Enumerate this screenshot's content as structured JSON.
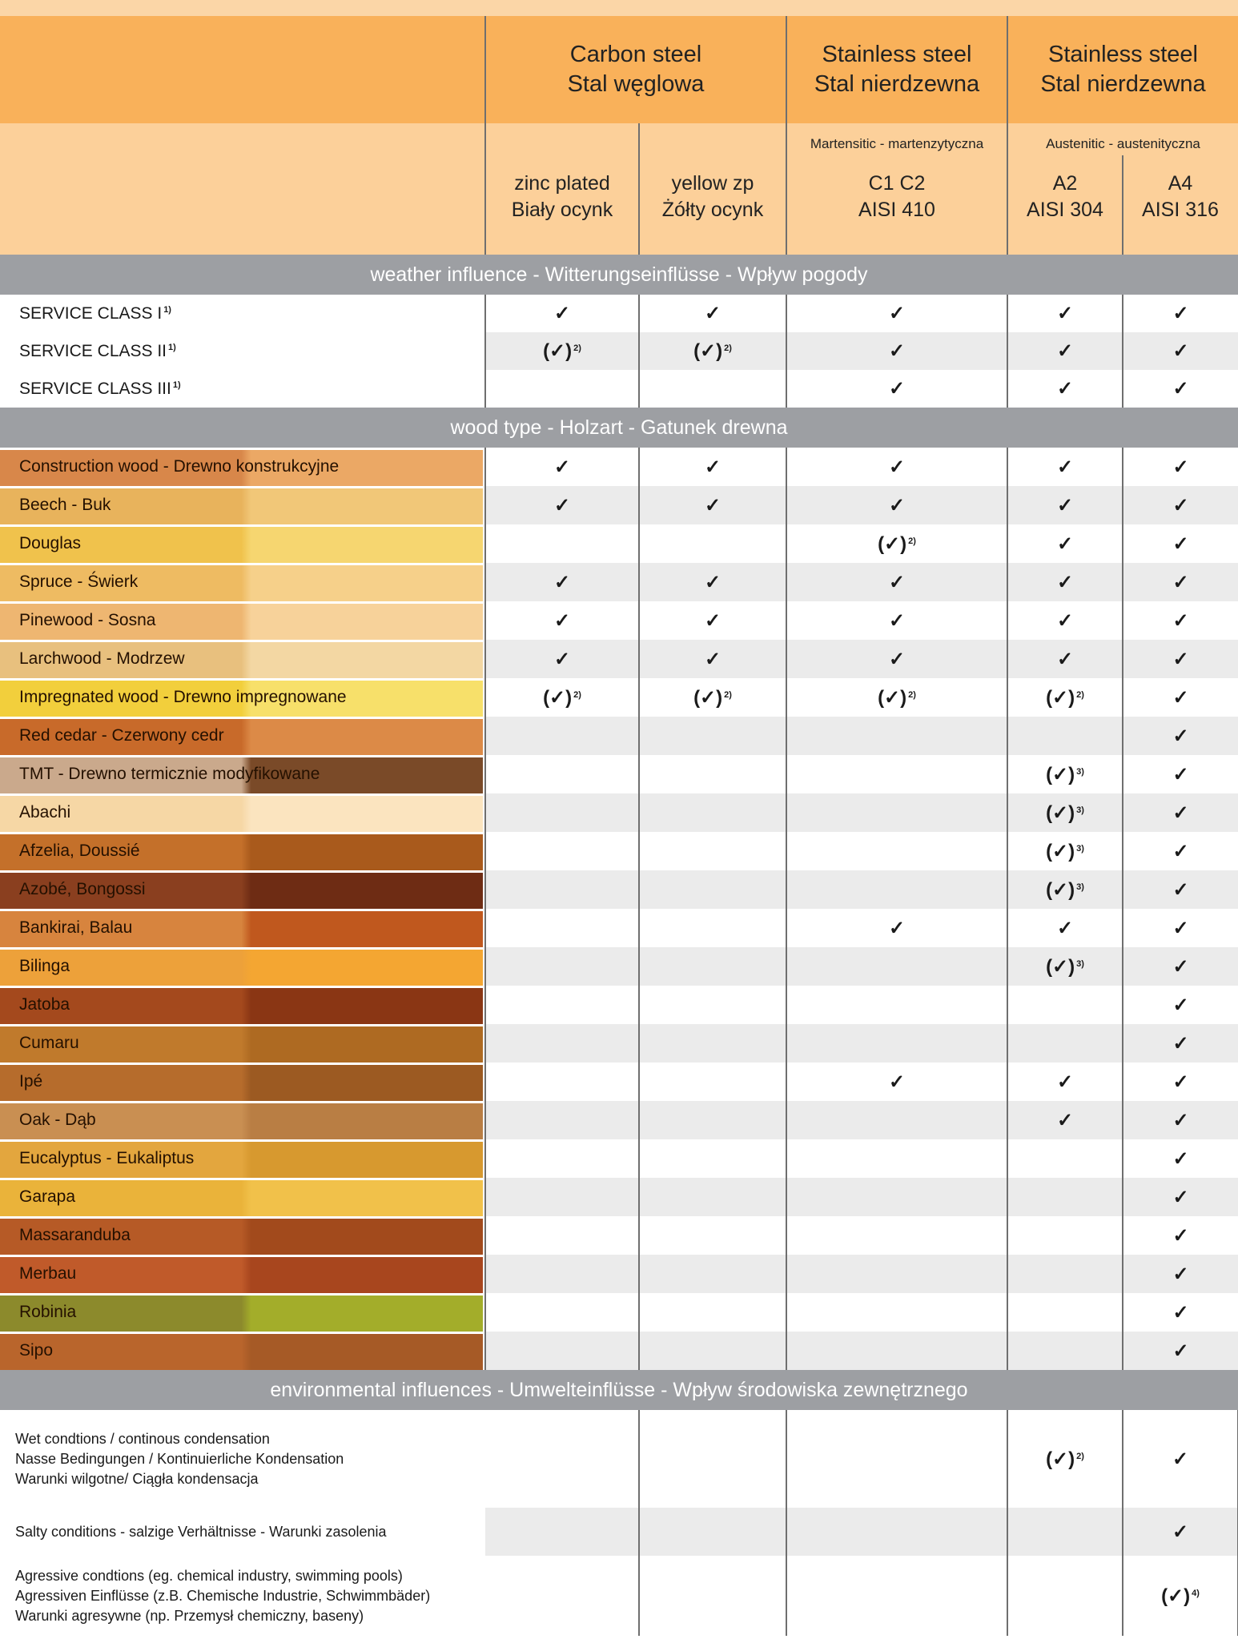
{
  "header": {
    "carbon": [
      "Carbon steel",
      "Stal węglowa"
    ],
    "stainless1": [
      "Stainless steel",
      "Stal nierdzewna"
    ],
    "stainless2": [
      "Stainless steel",
      "Stal nierdzewna"
    ],
    "martensitic": "Martensitic - martenzytyczna",
    "austenitic": "Austenitic - austenityczna",
    "cols": [
      [
        "zinc plated",
        "Biały ocynk"
      ],
      [
        "yellow zp",
        "Żółty ocynk"
      ],
      [
        "C1 C2",
        "AISI 410"
      ],
      [
        "A2",
        "AISI 304"
      ],
      [
        "A4",
        "AISI 316"
      ]
    ]
  },
  "marks": {
    "check": "✓",
    "limited": "(✓)"
  },
  "sections": [
    {
      "title": "weather influence - Witterungseinflüsse - Wpływ pogody",
      "rows": [
        {
          "label": "SERVICE CLASS I",
          "note": "1)",
          "cells": [
            {
              "v": "✓"
            },
            {
              "v": "✓"
            },
            {
              "v": "✓"
            },
            {
              "v": "✓"
            },
            {
              "v": "✓"
            }
          ]
        },
        {
          "label": "SERVICE CLASS II",
          "note": "1)",
          "cells": [
            {
              "v": "(✓)",
              "n": "2)"
            },
            {
              "v": "(✓)",
              "n": "2)"
            },
            {
              "v": "✓"
            },
            {
              "v": "✓"
            },
            {
              "v": "✓"
            }
          ]
        },
        {
          "label": "SERVICE CLASS III",
          "note": "1)",
          "cells": [
            {
              "v": ""
            },
            {
              "v": ""
            },
            {
              "v": "✓"
            },
            {
              "v": "✓"
            },
            {
              "v": "✓"
            }
          ]
        }
      ]
    },
    {
      "title": "wood type - Holzart - Gatunek drewna",
      "rows": [
        {
          "label": "Construction wood - Drewno konstrukcyjne",
          "wood": [
            "#d8874a",
            "#eba865"
          ],
          "cells": [
            {
              "v": "✓"
            },
            {
              "v": "✓"
            },
            {
              "v": "✓"
            },
            {
              "v": "✓"
            },
            {
              "v": "✓"
            }
          ]
        },
        {
          "label": "Beech - Buk",
          "wood": [
            "#e8b35c",
            "#f1c778"
          ],
          "cells": [
            {
              "v": "✓"
            },
            {
              "v": "✓"
            },
            {
              "v": "✓"
            },
            {
              "v": "✓"
            },
            {
              "v": "✓"
            }
          ]
        },
        {
          "label": "Douglas",
          "wood": [
            "#f0c24c",
            "#f6d670"
          ],
          "cells": [
            {
              "v": ""
            },
            {
              "v": ""
            },
            {
              "v": "(✓)",
              "n": "2)"
            },
            {
              "v": "✓"
            },
            {
              "v": "✓"
            }
          ]
        },
        {
          "label": "Spruce - Świerk",
          "wood": [
            "#eebb62",
            "#f6d08a"
          ],
          "cells": [
            {
              "v": "✓"
            },
            {
              "v": "✓"
            },
            {
              "v": "✓"
            },
            {
              "v": "✓"
            },
            {
              "v": "✓"
            }
          ]
        },
        {
          "label": "Pinewood - Sosna",
          "wood": [
            "#eeb671",
            "#f7d29a"
          ],
          "cells": [
            {
              "v": "✓"
            },
            {
              "v": "✓"
            },
            {
              "v": "✓"
            },
            {
              "v": "✓"
            },
            {
              "v": "✓"
            }
          ]
        },
        {
          "label": "Larchwood - Modrzew",
          "wood": [
            "#e8c07e",
            "#f3d7a3"
          ],
          "cells": [
            {
              "v": "✓"
            },
            {
              "v": "✓"
            },
            {
              "v": "✓"
            },
            {
              "v": "✓"
            },
            {
              "v": "✓"
            }
          ]
        },
        {
          "label": "Impregnated wood - Drewno impregnowane",
          "wood": [
            "#f2cf3c",
            "#f7e06a"
          ],
          "cells": [
            {
              "v": "(✓)",
              "n": "2)"
            },
            {
              "v": "(✓)",
              "n": "2)"
            },
            {
              "v": "(✓)",
              "n": "2)"
            },
            {
              "v": "(✓)",
              "n": "2)"
            },
            {
              "v": "✓"
            }
          ]
        },
        {
          "label": "Red cedar - Czerwony cedr",
          "wood": [
            "#c86a2a",
            "#dc8a47"
          ],
          "cells": [
            {
              "v": ""
            },
            {
              "v": ""
            },
            {
              "v": ""
            },
            {
              "v": ""
            },
            {
              "v": "✓"
            }
          ]
        },
        {
          "label": "TMT - Drewno termicznie modyfikowane",
          "wood": [
            "#caa98c",
            "#7a4a28"
          ],
          "cells": [
            {
              "v": ""
            },
            {
              "v": ""
            },
            {
              "v": ""
            },
            {
              "v": "(✓)",
              "n": "3)"
            },
            {
              "v": "✓"
            }
          ]
        },
        {
          "label": "Abachi",
          "wood": [
            "#f6d7a5",
            "#fbe4bf"
          ],
          "cells": [
            {
              "v": ""
            },
            {
              "v": ""
            },
            {
              "v": ""
            },
            {
              "v": "(✓)",
              "n": "3)"
            },
            {
              "v": "✓"
            }
          ]
        },
        {
          "label": "Afzelia, Doussié",
          "wood": [
            "#c4702a",
            "#a95a1c"
          ],
          "cells": [
            {
              "v": ""
            },
            {
              "v": ""
            },
            {
              "v": ""
            },
            {
              "v": "(✓)",
              "n": "3)"
            },
            {
              "v": "✓"
            }
          ]
        },
        {
          "label": "Azobé, Bongossi",
          "wood": [
            "#8a3f1f",
            "#6e2c14"
          ],
          "cells": [
            {
              "v": ""
            },
            {
              "v": ""
            },
            {
              "v": ""
            },
            {
              "v": "(✓)",
              "n": "3)"
            },
            {
              "v": "✓"
            }
          ]
        },
        {
          "label": "Bankirai, Balau",
          "wood": [
            "#d7843e",
            "#c0581e"
          ],
          "cells": [
            {
              "v": ""
            },
            {
              "v": ""
            },
            {
              "v": "✓"
            },
            {
              "v": "✓"
            },
            {
              "v": "✓"
            }
          ]
        },
        {
          "label": "Bilinga",
          "wood": [
            "#eda13a",
            "#f4a632"
          ],
          "cells": [
            {
              "v": ""
            },
            {
              "v": ""
            },
            {
              "v": ""
            },
            {
              "v": "(✓)",
              "n": "3)"
            },
            {
              "v": "✓"
            }
          ]
        },
        {
          "label": "Jatoba",
          "wood": [
            "#a4491d",
            "#8a3614"
          ],
          "cells": [
            {
              "v": ""
            },
            {
              "v": ""
            },
            {
              "v": ""
            },
            {
              "v": ""
            },
            {
              "v": "✓"
            }
          ]
        },
        {
          "label": "Cumaru",
          "wood": [
            "#c07a2c",
            "#ae6a22"
          ],
          "cells": [
            {
              "v": ""
            },
            {
              "v": ""
            },
            {
              "v": ""
            },
            {
              "v": ""
            },
            {
              "v": "✓"
            }
          ]
        },
        {
          "label": "Ipé",
          "wood": [
            "#b66c2c",
            "#9c5a22"
          ],
          "cells": [
            {
              "v": ""
            },
            {
              "v": ""
            },
            {
              "v": "✓"
            },
            {
              "v": "✓"
            },
            {
              "v": "✓"
            }
          ]
        },
        {
          "label": "Oak - Dąb",
          "wood": [
            "#c98f52",
            "#b97e44"
          ],
          "cells": [
            {
              "v": ""
            },
            {
              "v": ""
            },
            {
              "v": ""
            },
            {
              "v": "✓"
            },
            {
              "v": "✓"
            }
          ]
        },
        {
          "label": "Eucalyptus - Eukaliptus",
          "wood": [
            "#e3a63e",
            "#d7992f"
          ],
          "cells": [
            {
              "v": ""
            },
            {
              "v": ""
            },
            {
              "v": ""
            },
            {
              "v": ""
            },
            {
              "v": "✓"
            }
          ]
        },
        {
          "label": "Garapa",
          "wood": [
            "#eab33a",
            "#f1c14a"
          ],
          "cells": [
            {
              "v": ""
            },
            {
              "v": ""
            },
            {
              "v": ""
            },
            {
              "v": ""
            },
            {
              "v": "✓"
            }
          ]
        },
        {
          "label": "Massaranduba",
          "wood": [
            "#b65a26",
            "#a24a1c"
          ],
          "cells": [
            {
              "v": ""
            },
            {
              "v": ""
            },
            {
              "v": ""
            },
            {
              "v": ""
            },
            {
              "v": "✓"
            }
          ]
        },
        {
          "label": "Merbau",
          "wood": [
            "#c05a2a",
            "#a8461e"
          ],
          "cells": [
            {
              "v": ""
            },
            {
              "v": ""
            },
            {
              "v": ""
            },
            {
              "v": ""
            },
            {
              "v": "✓"
            }
          ]
        },
        {
          "label": "Robinia",
          "wood": [
            "#8c8a2c",
            "#a3ad2a"
          ],
          "cells": [
            {
              "v": ""
            },
            {
              "v": ""
            },
            {
              "v": ""
            },
            {
              "v": ""
            },
            {
              "v": "✓"
            }
          ]
        },
        {
          "label": "Sipo",
          "wood": [
            "#b9652c",
            "#a65a26"
          ],
          "cells": [
            {
              "v": ""
            },
            {
              "v": ""
            },
            {
              "v": ""
            },
            {
              "v": ""
            },
            {
              "v": "✓"
            }
          ]
        }
      ]
    },
    {
      "title": "environmental influences - Umwelteinflüsse - Wpływ środowiska zewnętrznego",
      "env": true,
      "rows": [
        {
          "lines": [
            "Wet condtions / continous condensation",
            "Nasse Bedingungen / Kontinuierliche Kondensation",
            "Warunki wilgotne/ Ciągła kondensacja"
          ],
          "h": 122,
          "cells": [
            {
              "v": ""
            },
            {
              "v": ""
            },
            {
              "v": ""
            },
            {
              "v": "(✓)",
              "n": "2)"
            },
            {
              "v": "✓"
            }
          ]
        },
        {
          "lines": [
            "Salty conditions - salzige Verhältnisse - Warunki zasolenia"
          ],
          "h": 60,
          "cells": [
            {
              "v": ""
            },
            {
              "v": ""
            },
            {
              "v": ""
            },
            {
              "v": ""
            },
            {
              "v": "✓"
            }
          ]
        },
        {
          "lines": [
            "Agressive condtions (eg. chemical industry, swimming pools)",
            "Agressiven Einflüsse (z.B. Chemische Industrie, Schwimmbäder)",
            "Warunki agresywne (np. Przemysł chemiczny, baseny)"
          ],
          "h": 100,
          "cells": [
            {
              "v": ""
            },
            {
              "v": ""
            },
            {
              "v": ""
            },
            {
              "v": ""
            },
            {
              "v": "(✓)",
              "n": "4)"
            }
          ]
        }
      ]
    }
  ]
}
